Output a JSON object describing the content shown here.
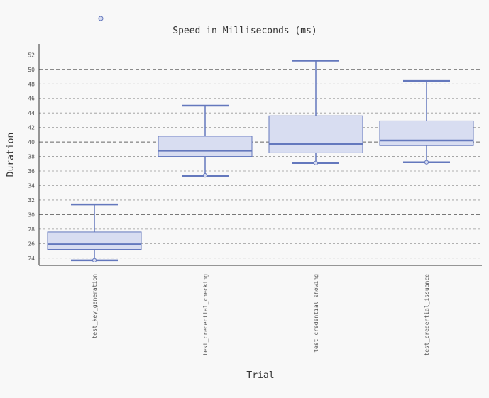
{
  "chart_data": {
    "type": "box",
    "title": "Speed in Milliseconds (ms)",
    "xlabel": "Trial",
    "ylabel": "Duration",
    "ylim": [
      23,
      53.5
    ],
    "y_ticks": [
      24,
      26,
      28,
      30,
      32,
      34,
      36,
      38,
      40,
      42,
      44,
      46,
      48,
      50,
      52
    ],
    "y_major_grid": [
      30,
      40,
      50
    ],
    "grid": true,
    "legend": "top-left",
    "categories": [
      "test_key_generation",
      "test_credential_checking",
      "test_credential_showing",
      "test_credential_issuance"
    ],
    "boxes": [
      {
        "whisker_low": 23.7,
        "q1": 25.2,
        "median": 25.9,
        "q3": 27.6,
        "whisker_high": 31.4,
        "outliers": [
          23.7
        ]
      },
      {
        "whisker_low": 35.3,
        "q1": 38.0,
        "median": 38.8,
        "q3": 40.8,
        "whisker_high": 45.0,
        "outliers": [
          35.4
        ]
      },
      {
        "whisker_low": 37.1,
        "q1": 38.5,
        "median": 39.7,
        "q3": 43.6,
        "whisker_high": 51.2,
        "outliers": [
          37.1
        ]
      },
      {
        "whisker_low": 37.2,
        "q1": 39.5,
        "median": 40.2,
        "q3": 42.9,
        "whisker_high": 48.4,
        "outliers": [
          37.2
        ]
      }
    ],
    "colors": {
      "stroke": "#6478bd",
      "fill": "#d8ddf1",
      "background": "#f8f8f8",
      "grid": "#888888"
    }
  }
}
